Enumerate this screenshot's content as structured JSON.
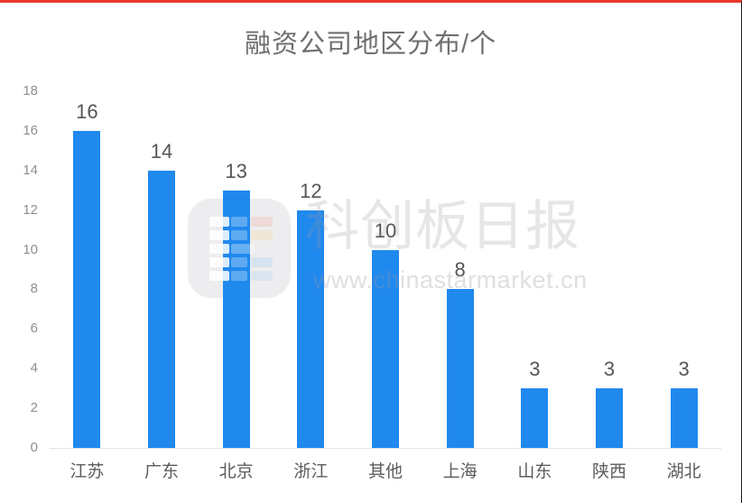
{
  "page": {
    "top_border_color": "#e8392b",
    "right_border_color": "#1a1a1a",
    "background_color": "#ffffff"
  },
  "chart_data": {
    "type": "bar",
    "title": "融资公司地区分布/个",
    "categories": [
      "江苏",
      "广东",
      "北京",
      "浙江",
      "其他",
      "上海",
      "山东",
      "陕西",
      "湖北"
    ],
    "values": [
      16,
      14,
      13,
      12,
      10,
      8,
      3,
      3,
      3
    ],
    "ymax": 18,
    "yticks": [
      0,
      2,
      4,
      6,
      8,
      10,
      12,
      14,
      16,
      18
    ],
    "xlabel": "",
    "ylabel": "",
    "bar_color": "#2089ee",
    "grid": false,
    "legend": false,
    "value_labels_shown": true
  },
  "watermark": {
    "brand": "科创板日报",
    "url": "www.chinastarmarket.cn"
  }
}
